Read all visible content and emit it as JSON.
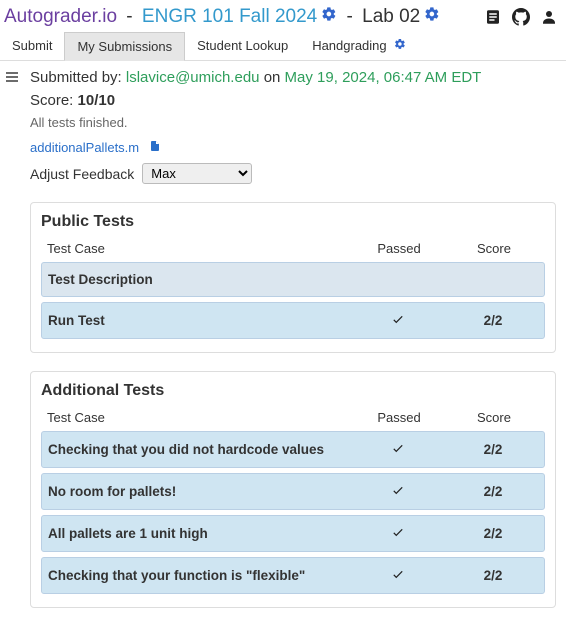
{
  "header": {
    "brand": "Autograder.io",
    "course": "ENGR 101 Fall 2024",
    "lab": "Lab 02"
  },
  "tabs": {
    "submit": "Submit",
    "my_submissions": "My Submissions",
    "student_lookup": "Student Lookup",
    "handgrading": "Handgrading"
  },
  "submission": {
    "by_label": "Submitted by:",
    "email": "lslavice@umich.edu",
    "on_label": "on",
    "timestamp": "May 19, 2024, 06:47 AM EDT",
    "score_label": "Score:",
    "score_value": "10/10",
    "status": "All tests finished.",
    "file_name": "additionalPallets.m"
  },
  "feedback": {
    "label": "Adjust Feedback",
    "value": "Max"
  },
  "columns": {
    "name": "Test Case",
    "passed": "Passed",
    "score": "Score"
  },
  "groups": [
    {
      "title": "Public Tests",
      "rows": [
        {
          "name": "Test Description",
          "passed": false,
          "score": ""
        },
        {
          "name": "Run Test",
          "passed": true,
          "score": "2/2"
        }
      ]
    },
    {
      "title": "Additional Tests",
      "rows": [
        {
          "name": "Checking that you did not hardcode values",
          "passed": true,
          "score": "2/2"
        },
        {
          "name": "No room for pallets!",
          "passed": true,
          "score": "2/2"
        },
        {
          "name": "All pallets are 1 unit high",
          "passed": true,
          "score": "2/2"
        },
        {
          "name": "Checking that your function is \"flexible\"",
          "passed": true,
          "score": "2/2"
        }
      ]
    }
  ]
}
